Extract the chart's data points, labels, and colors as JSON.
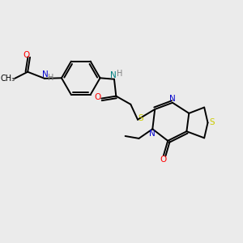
{
  "bg_color": "#ebebeb",
  "atom_colors": {
    "O": "#ff0000",
    "N": "#0000cc",
    "N2": "#008080",
    "S": "#cccc00",
    "H": "#808080",
    "C": "#000000"
  },
  "bond_lw": 1.4,
  "fontsize": 7.5
}
